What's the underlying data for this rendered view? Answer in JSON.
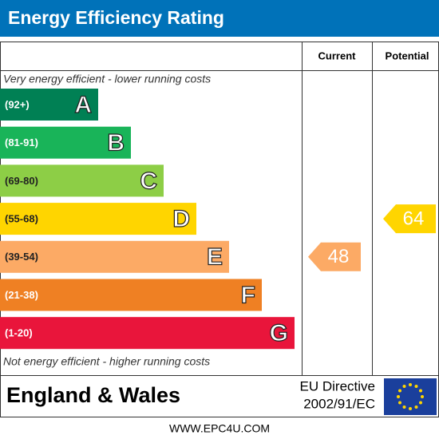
{
  "header": {
    "title": "Energy Efficiency Rating"
  },
  "columns": [
    "Current",
    "Potential"
  ],
  "top_note": "Very energy efficient - lower running costs",
  "bands": [
    {
      "range": "(92+)",
      "letter": "A",
      "color": "#008054"
    },
    {
      "range": "(81-91)",
      "letter": "B",
      "color": "#19b459"
    },
    {
      "range": "(69-80)",
      "letter": "C",
      "color": "#8dce46"
    },
    {
      "range": "(55-68)",
      "letter": "D",
      "color": "#ffd500"
    },
    {
      "range": "(39-54)",
      "letter": "E",
      "color": "#fcaa65"
    },
    {
      "range": "(21-38)",
      "letter": "F",
      "color": "#ef8023"
    },
    {
      "range": "(1-20)",
      "letter": "G",
      "color": "#e9153b"
    }
  ],
  "bottom_note": "Not energy efficient - higher running costs",
  "current": {
    "value": 48
  },
  "potential": {
    "value": 64
  },
  "footer": {
    "region": "England & Wales",
    "directive_line1": "EU Directive",
    "directive_line2": "2002/91/EC",
    "website": "WWW.EPC4U.COM"
  }
}
